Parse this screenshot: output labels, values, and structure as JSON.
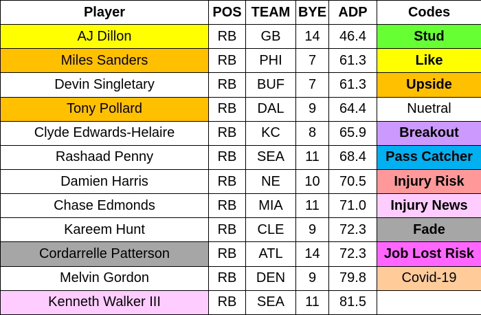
{
  "table": {
    "columns": [
      "Player",
      "POS",
      "TEAM",
      "BYE",
      "ADP",
      "Codes"
    ],
    "rows": [
      [
        "AJ Dillon",
        "RB",
        "GB",
        "14",
        "46.4"
      ],
      [
        "Miles Sanders",
        "RB",
        "PHI",
        "7",
        "61.3"
      ],
      [
        "Devin Singletary",
        "RB",
        "BUF",
        "7",
        "61.3"
      ],
      [
        "Tony Pollard",
        "RB",
        "DAL",
        "9",
        "64.4"
      ],
      [
        "Clyde Edwards-Helaire",
        "RB",
        "KC",
        "8",
        "65.9"
      ],
      [
        "Rashaad Penny",
        "RB",
        "SEA",
        "11",
        "68.4"
      ],
      [
        "Damien Harris",
        "RB",
        "NE",
        "10",
        "70.5"
      ],
      [
        "Chase Edmonds",
        "RB",
        "MIA",
        "11",
        "71.0"
      ],
      [
        "Kareem Hunt",
        "RB",
        "CLE",
        "9",
        "72.3"
      ],
      [
        "Cordarrelle Patterson",
        "RB",
        "ATL",
        "14",
        "72.3"
      ],
      [
        "Melvin Gordon",
        "RB",
        "DEN",
        "9",
        "79.8"
      ],
      [
        "Kenneth Walker III",
        "RB",
        "SEA",
        "11",
        "81.5"
      ]
    ],
    "player_colors": [
      "#ffff00",
      "#ffc000",
      "#ffffff",
      "#ffc000",
      "#ffffff",
      "#ffffff",
      "#ffffff",
      "#ffffff",
      "#ffffff",
      "#a6a6a6",
      "#ffffff",
      "#ffccff"
    ],
    "codes": [
      {
        "label": "Stud",
        "color": "#66ff33",
        "bold": true
      },
      {
        "label": "Like",
        "color": "#ffff00",
        "bold": true
      },
      {
        "label": "Upside",
        "color": "#ffc000",
        "bold": true
      },
      {
        "label": "Nuetral",
        "color": "#ffffff",
        "bold": false
      },
      {
        "label": "Breakout",
        "color": "#cc99ff",
        "bold": true
      },
      {
        "label": "Pass Catcher",
        "color": "#00b0f0",
        "bold": true
      },
      {
        "label": "Injury Risk",
        "color": "#ff9999",
        "bold": true
      },
      {
        "label": "Injury News",
        "color": "#ffccff",
        "bold": true
      },
      {
        "label": "Fade",
        "color": "#a6a6a6",
        "bold": true
      },
      {
        "label": "Job Lost Risk",
        "color": "#ff66ff",
        "bold": true
      },
      {
        "label": "Covid-19",
        "color": "#ffcc99",
        "bold": false
      }
    ]
  }
}
